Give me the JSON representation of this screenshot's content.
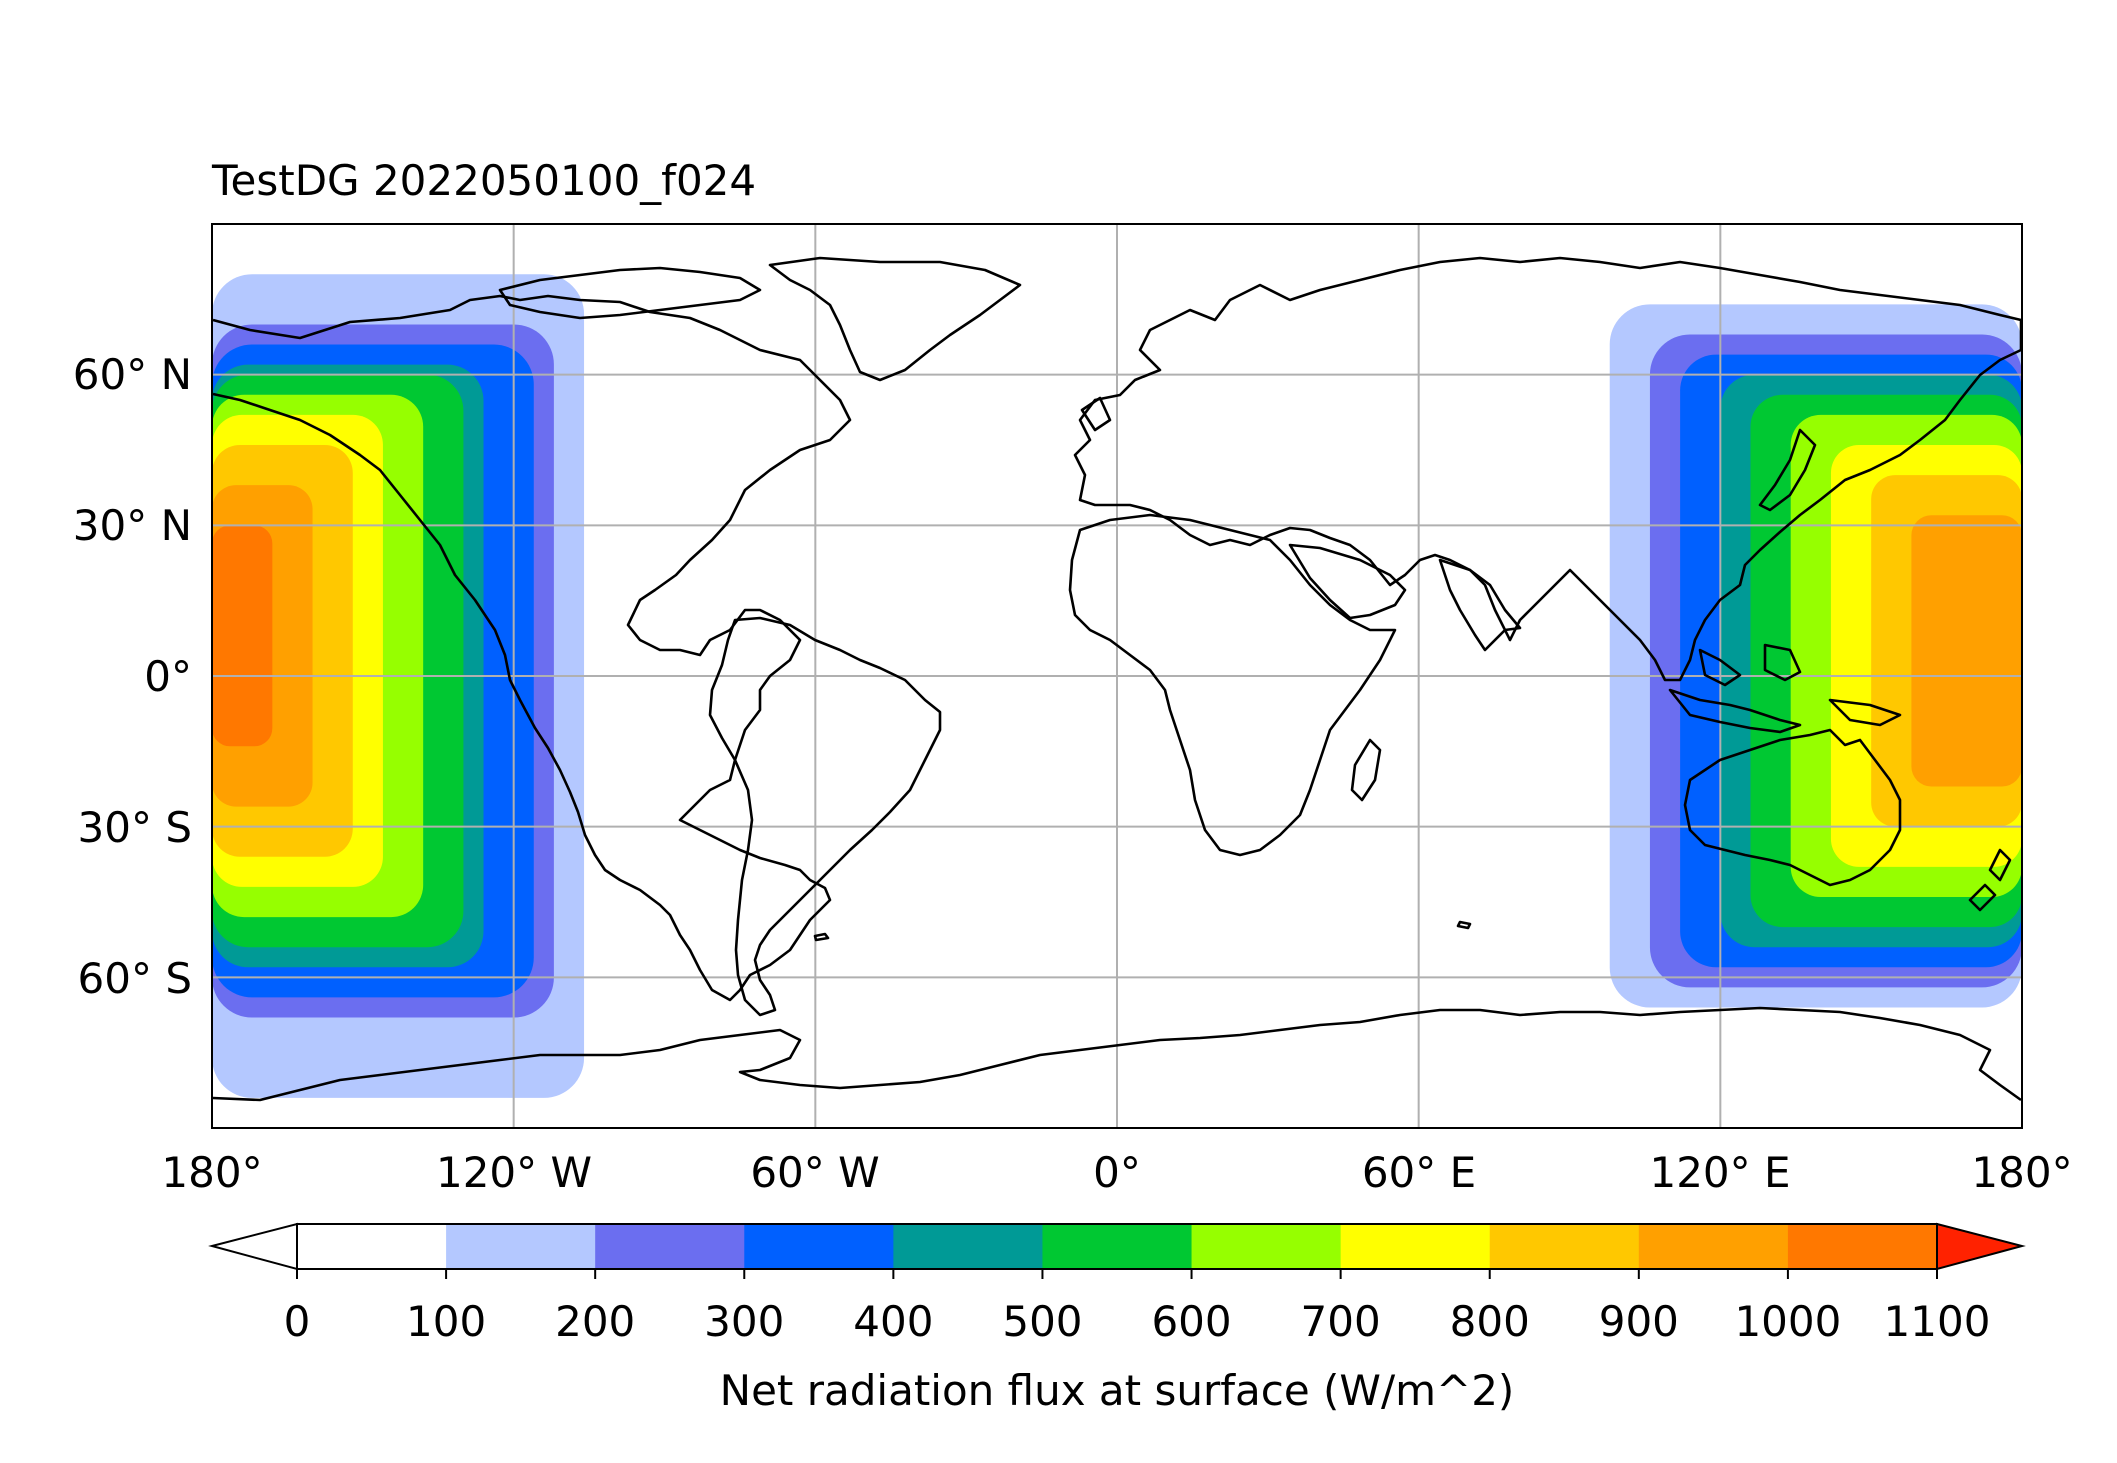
{
  "title": "TestDG 2022050100_f024",
  "map": {
    "projection": "PlateCarree",
    "lon_range": [
      -180,
      180
    ],
    "lat_range": [
      -90,
      90
    ],
    "gridlines": true,
    "gridline_color": "#b0b0b0",
    "coastline_color": "#000000",
    "lon_ticks": [
      {
        "value": -180,
        "label": "180°"
      },
      {
        "value": -120,
        "label": "120° W"
      },
      {
        "value": -60,
        "label": "60° W"
      },
      {
        "value": 0,
        "label": "0°"
      },
      {
        "value": 60,
        "label": "60° E"
      },
      {
        "value": 120,
        "label": "120° E"
      },
      {
        "value": 180,
        "label": "180°"
      }
    ],
    "lat_ticks": [
      {
        "value": 60,
        "label": "60° N"
      },
      {
        "value": 30,
        "label": "30° N"
      },
      {
        "value": 0,
        "label": "0°"
      },
      {
        "value": -30,
        "label": "30° S"
      },
      {
        "value": -60,
        "label": "60° S"
      }
    ],
    "field_regions": [
      "Pacific daytime sector (approx. 180°–100° W)",
      "Western Pacific / Australia / East Asia daytime sector (approx. 100° E–180°)"
    ]
  },
  "colorbar": {
    "label": "Net radiation flux at surface (W/m^2)",
    "extend": "both",
    "tick_labels": [
      "0",
      "100",
      "200",
      "300",
      "400",
      "500",
      "600",
      "700",
      "800",
      "900",
      "1000",
      "1100"
    ],
    "levels": [
      0,
      100,
      200,
      300,
      400,
      500,
      600,
      700,
      800,
      900,
      1000,
      1100
    ],
    "under_color": "#ffffff",
    "over_color": "#ff2200",
    "colors": [
      "#ffffff",
      "#b4c8ff",
      "#6b6ef0",
      "#0060ff",
      "#009a96",
      "#00c832",
      "#96ff00",
      "#ffff00",
      "#ffc800",
      "#ffa000",
      "#ff7800"
    ]
  }
}
